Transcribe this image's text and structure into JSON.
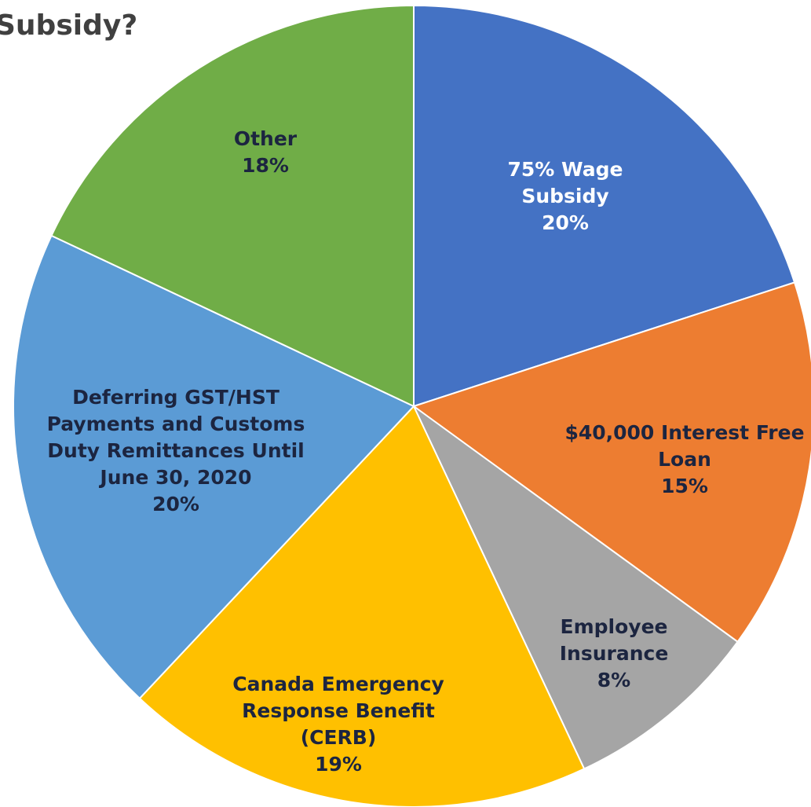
{
  "chart_data": {
    "type": "pie",
    "title": "Subsidy?",
    "categories": [
      "75% Wage Subsidy",
      "$40,000 Interest Free Loan",
      "Employee Insurance",
      "Canada Emergency Response Benefit (CERB)",
      "Deferring GST/HST Payments and Customs Duty Remittances Until June 30, 2020",
      "Other"
    ],
    "values": [
      20,
      15,
      8,
      19,
      20,
      18
    ],
    "value_labels": [
      "20%",
      "15%",
      "8%",
      "19%",
      "20%",
      "18%"
    ],
    "colors": [
      "#4472c4",
      "#ed7d31",
      "#a5a5a5",
      "#ffc000",
      "#5b9bd5",
      "#70ad47"
    ]
  }
}
